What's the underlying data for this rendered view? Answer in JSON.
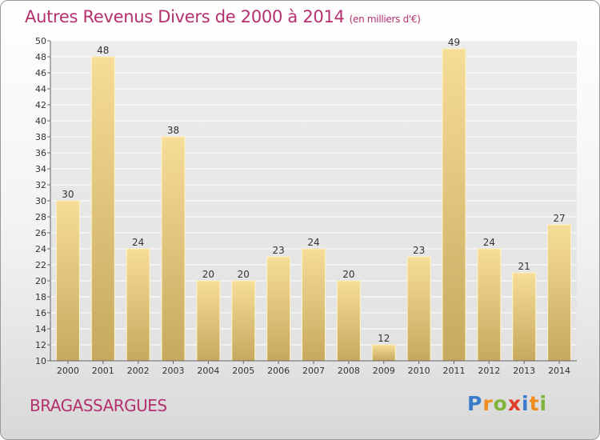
{
  "chart_data": {
    "type": "bar",
    "title": "Autres Revenus Divers de 2000 à 2014",
    "unit_label": "(en milliers d'€)",
    "categories": [
      "2000",
      "2001",
      "2002",
      "2003",
      "2004",
      "2005",
      "2006",
      "2007",
      "2008",
      "2009",
      "2010",
      "2011",
      "2012",
      "2013",
      "2014"
    ],
    "values": [
      30,
      48,
      24,
      38,
      20,
      20,
      23,
      24,
      20,
      12,
      23,
      49,
      24,
      21,
      27
    ],
    "ylim": [
      10,
      50
    ],
    "ytick_step": 2,
    "grid": true,
    "bar_color": "#e6c981",
    "title_color": "#b5306e"
  },
  "footer": {
    "commune": "BRAGASSARGUES",
    "logo_text": "Proxiti"
  }
}
